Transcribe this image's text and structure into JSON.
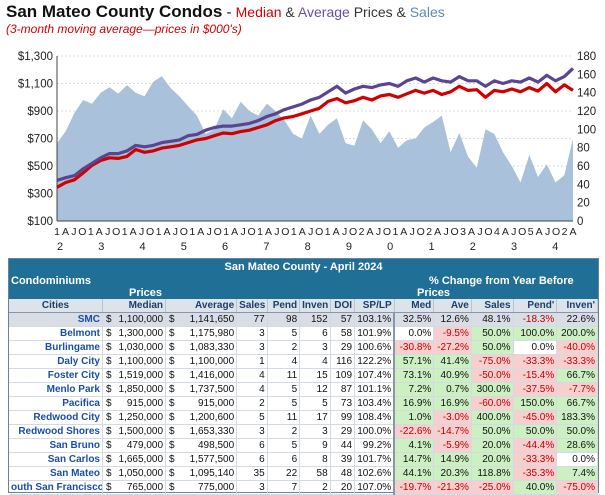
{
  "header": {
    "title_main": "San Mateo County Condos",
    "title_dash": " - ",
    "title_parts": [
      {
        "text": "Median",
        "color": "#d00000"
      },
      {
        "text": " & ",
        "color": "#333333"
      },
      {
        "text": "Average",
        "color": "#6b4f9e"
      },
      {
        "text": " Prices & ",
        "color": "#333333"
      },
      {
        "text": "Sales",
        "color": "#5a8bb8"
      }
    ],
    "subtitle": "(3-month moving average—prices in $000's)"
  },
  "colors": {
    "median": "#d00000",
    "average": "#5b4491",
    "sales_area": "#a9c1da",
    "grid": "#bbbbbb"
  },
  "chart_data": {
    "type": "line",
    "title": "San Mateo County Condos - Median & Average Prices & Sales",
    "subtitle": "(3-month moving average—prices in $000's)",
    "y_left_ticks": [
      "$100",
      "$300",
      "$500",
      "$700",
      "$900",
      "$1,100",
      "$1,300"
    ],
    "y_left_range": [
      100,
      1300
    ],
    "y_right_ticks": [
      "0",
      "20",
      "40",
      "60",
      "80",
      "100",
      "120",
      "140",
      "160",
      "180"
    ],
    "y_right_range": [
      0,
      180
    ],
    "x_month_labels": [
      "1",
      "A",
      "J",
      "O",
      "1",
      "A",
      "J",
      "O",
      "1",
      "A",
      "J",
      "O",
      "1",
      "A",
      "J",
      "O",
      "1",
      "A",
      "J",
      "O",
      "1",
      "A",
      "J",
      "O",
      "1",
      "A",
      "J",
      "O",
      "1",
      "A",
      "J",
      "O",
      "1",
      "A",
      "J",
      "O",
      "2",
      "A",
      "J",
      "O",
      "1",
      "A",
      "J",
      "O",
      "2",
      "A",
      "J",
      "O",
      "3",
      "A",
      "J",
      "O",
      "4",
      "A",
      "J",
      "O",
      "5",
      "A",
      "J",
      "O",
      "2",
      "A"
    ],
    "x_year_labels": [
      "2",
      "3",
      "4",
      "5",
      "6",
      "7",
      "8",
      "9",
      "0",
      "1",
      "2",
      "3",
      "4"
    ],
    "series": [
      {
        "name": "Median",
        "axis": "left",
        "values": [
          345,
          380,
          400,
          450,
          505,
          540,
          560,
          555,
          570,
          620,
          600,
          610,
          630,
          640,
          650,
          670,
          690,
          700,
          720,
          740,
          735,
          750,
          760,
          780,
          800,
          830,
          850,
          860,
          880,
          900,
          920,
          970,
          990,
          960,
          975,
          1000,
          980,
          1010,
          1020,
          1000,
          1025,
          1050,
          1030,
          1050,
          1020,
          1040,
          1080,
          1050,
          1055,
          1000,
          1050,
          1040,
          1060,
          1040,
          1070,
          1045,
          1100,
          1040,
          1090,
          1050
        ]
      },
      {
        "name": "Average",
        "axis": "left",
        "values": [
          395,
          415,
          430,
          480,
          520,
          560,
          590,
          590,
          610,
          650,
          640,
          650,
          670,
          680,
          690,
          720,
          730,
          760,
          780,
          790,
          790,
          800,
          810,
          830,
          860,
          880,
          910,
          930,
          950,
          980,
          1000,
          1040,
          1080,
          1030,
          1060,
          1080,
          1070,
          1090,
          1100,
          1080,
          1120,
          1140,
          1110,
          1140,
          1120,
          1110,
          1150,
          1120,
          1120,
          1080,
          1120,
          1100,
          1120,
          1110,
          1140,
          1110,
          1160,
          1120,
          1150,
          1210
        ]
      },
      {
        "name": "Sales",
        "axis": "right",
        "values": [
          85,
          98,
          118,
          132,
          128,
          140,
          146,
          139,
          148,
          140,
          136,
          152,
          158,
          145,
          136,
          125,
          115,
          95,
          100,
          122,
          112,
          130,
          120,
          115,
          128,
          120,
          110,
          95,
          90,
          115,
          95,
          105,
          112,
          85,
          82,
          110,
          100,
          85,
          98,
          80,
          88,
          90,
          102,
          108,
          115,
          75,
          96,
          70,
          58,
          100,
          95,
          75,
          60,
          42,
          72,
          48,
          62,
          42,
          50,
          90
        ]
      }
    ]
  },
  "table": {
    "title": "San Mateo County - April 2024",
    "left_header": "Condominiums",
    "right_header": "% Change from Year Before",
    "prices_label": "Prices",
    "prices_label_right": "Prices",
    "columns": [
      "Cities",
      "Median",
      "Average",
      "Sales",
      "Pend",
      "Inven",
      "DOI",
      "SP/LP",
      "Med",
      "Ave",
      "Sales",
      "Pend'",
      "Inven'"
    ],
    "rows": [
      {
        "city": "SMC",
        "median": "1,100,000",
        "average": "1,141,650",
        "sales": "77",
        "pend": "98",
        "inven": "152",
        "doi": "57",
        "splp": "103.1%",
        "med": "32.5%",
        "ave": "12.6%",
        "sales_chg": "48.1%",
        "pend_chg": "-18.3%",
        "inven_chg": "22.6%"
      },
      {
        "city": "Belmont",
        "median": "1,300,000",
        "average": "1,175,980",
        "sales": "3",
        "pend": "5",
        "inven": "6",
        "doi": "58",
        "splp": "101.9%",
        "med": "0.0%",
        "ave": "-9.5%",
        "sales_chg": "50.0%",
        "pend_chg": "100.0%",
        "inven_chg": "200.0%"
      },
      {
        "city": "Burlingame",
        "median": "1,030,000",
        "average": "1,083,330",
        "sales": "3",
        "pend": "2",
        "inven": "3",
        "doi": "29",
        "splp": "100.6%",
        "med": "-30.8%",
        "ave": "-27.2%",
        "sales_chg": "50.0%",
        "pend_chg": "0.0%",
        "inven_chg": "-40.0%"
      },
      {
        "city": "Daly City",
        "median": "1,100,000",
        "average": "1,100,000",
        "sales": "1",
        "pend": "4",
        "inven": "4",
        "doi": "116",
        "splp": "122.2%",
        "med": "57.1%",
        "ave": "41.4%",
        "sales_chg": "-75.0%",
        "pend_chg": "-33.3%",
        "inven_chg": "-33.3%"
      },
      {
        "city": "Foster City",
        "median": "1,519,000",
        "average": "1,416,000",
        "sales": "4",
        "pend": "11",
        "inven": "15",
        "doi": "109",
        "splp": "107.4%",
        "med": "73.1%",
        "ave": "40.9%",
        "sales_chg": "-50.0%",
        "pend_chg": "-15.4%",
        "inven_chg": "66.7%"
      },
      {
        "city": "Menlo Park",
        "median": "1,850,000",
        "average": "1,737,500",
        "sales": "4",
        "pend": "5",
        "inven": "12",
        "doi": "87",
        "splp": "101.1%",
        "med": "7.2%",
        "ave": "0.7%",
        "sales_chg": "300.0%",
        "pend_chg": "-37.5%",
        "inven_chg": "-7.7%"
      },
      {
        "city": "Pacifica",
        "median": "915,000",
        "average": "915,000",
        "sales": "2",
        "pend": "5",
        "inven": "5",
        "doi": "73",
        "splp": "103.4%",
        "med": "16.9%",
        "ave": "16.9%",
        "sales_chg": "-60.0%",
        "pend_chg": "150.0%",
        "inven_chg": "66.7%"
      },
      {
        "city": "Redwood City",
        "median": "1,250,000",
        "average": "1,200,600",
        "sales": "5",
        "pend": "11",
        "inven": "17",
        "doi": "99",
        "splp": "108.4%",
        "med": "1.0%",
        "ave": "-3.0%",
        "sales_chg": "400.0%",
        "pend_chg": "-45.0%",
        "inven_chg": "183.3%"
      },
      {
        "city": "Redwood Shores",
        "median": "1,500,000",
        "average": "1,653,330",
        "sales": "3",
        "pend": "2",
        "inven": "3",
        "doi": "29",
        "splp": "100.0%",
        "med": "-22.6%",
        "ave": "-14.7%",
        "sales_chg": "50.0%",
        "pend_chg": "50.0%",
        "inven_chg": "50.0%"
      },
      {
        "city": "San Bruno",
        "median": "479,000",
        "average": "498,500",
        "sales": "6",
        "pend": "5",
        "inven": "9",
        "doi": "44",
        "splp": "99.2%",
        "med": "4.1%",
        "ave": "-5.9%",
        "sales_chg": "20.0%",
        "pend_chg": "-44.4%",
        "inven_chg": "28.6%"
      },
      {
        "city": "San Carlos",
        "median": "1,665,000",
        "average": "1,577,500",
        "sales": "6",
        "pend": "6",
        "inven": "8",
        "doi": "39",
        "splp": "101.7%",
        "med": "14.7%",
        "ave": "14.9%",
        "sales_chg": "20.0%",
        "pend_chg": "-33.3%",
        "inven_chg": "0.0%"
      },
      {
        "city": "San Mateo",
        "median": "1,050,000",
        "average": "1,095,140",
        "sales": "35",
        "pend": "22",
        "inven": "58",
        "doi": "48",
        "splp": "102.6%",
        "med": "44.1%",
        "ave": "20.3%",
        "sales_chg": "118.8%",
        "pend_chg": "-35.3%",
        "inven_chg": "7.4%"
      },
      {
        "city": "outh San Francisco",
        "median": "765,000",
        "average": "775,000",
        "sales": "3",
        "pend": "7",
        "inven": "2",
        "doi": "20",
        "splp": "107.0%",
        "med": "-19.7%",
        "ave": "-21.3%",
        "sales_chg": "-25.0%",
        "pend_chg": "40.0%",
        "inven_chg": "-75.0%"
      }
    ]
  }
}
